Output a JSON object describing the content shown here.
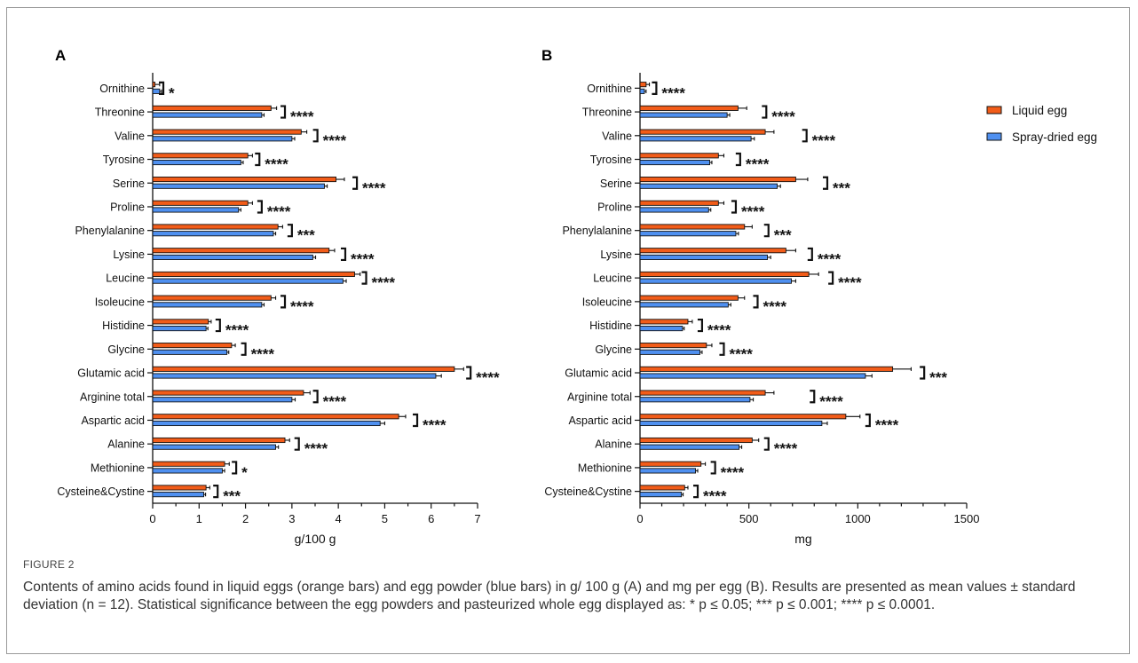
{
  "figure": {
    "label": "FIGURE 2",
    "caption": "Contents of amino acids found in liquid eggs (orange bars) and egg powder (blue bars) in g/ 100 g (A) and mg per egg (B). Results are presented as mean values ± standard deviation (n = 12). Statistical significance between the egg powders and pasteurized whole egg displayed as: * p ≤ 0.05; *** p ≤ 0.001; **** p ≤ 0.0001."
  },
  "colors": {
    "liquid": "#f25c19",
    "spray": "#4f90f0",
    "axis": "#111111"
  },
  "chart_data": [
    {
      "type": "bar",
      "orientation": "horizontal",
      "panel_label": "A",
      "xlabel": "g/100 g",
      "xlim": [
        0,
        7
      ],
      "xticks": [
        0,
        1,
        2,
        3,
        4,
        5,
        6,
        7
      ],
      "categories": [
        "Ornithine",
        "Threonine",
        "Valine",
        "Tyrosine",
        "Serine",
        "Proline",
        "Phenylalanine",
        "Lysine",
        "Leucine",
        "Isoleucine",
        "Histidine",
        "Glycine",
        "Glutamic acid",
        "Arginine total",
        "Aspartic acid",
        "Alanine",
        "Methionine",
        "Cysteine&Cystine"
      ],
      "series": [
        {
          "name": "Liquid egg",
          "values": [
            0.05,
            2.55,
            3.2,
            2.05,
            3.95,
            2.05,
            2.7,
            3.8,
            4.35,
            2.55,
            1.2,
            1.7,
            6.5,
            3.25,
            5.3,
            2.85,
            1.55,
            1.15
          ],
          "errors": [
            0.1,
            0.12,
            0.12,
            0.1,
            0.18,
            0.1,
            0.1,
            0.12,
            0.12,
            0.1,
            0.06,
            0.08,
            0.2,
            0.14,
            0.15,
            0.1,
            0.1,
            0.08
          ]
        },
        {
          "name": "Spray-dried egg",
          "values": [
            0.15,
            2.35,
            3.0,
            1.9,
            3.7,
            1.85,
            2.6,
            3.45,
            4.1,
            2.35,
            1.15,
            1.6,
            6.1,
            3.0,
            4.9,
            2.65,
            1.5,
            1.1
          ],
          "errors": [
            0.04,
            0.05,
            0.06,
            0.05,
            0.06,
            0.05,
            0.05,
            0.06,
            0.07,
            0.05,
            0.04,
            0.04,
            0.12,
            0.07,
            0.1,
            0.06,
            0.05,
            0.04
          ]
        }
      ],
      "significance": [
        "*",
        "****",
        "****",
        "****",
        "****",
        "****",
        "***",
        "****",
        "****",
        "****",
        "****",
        "****",
        "****",
        "****",
        "****",
        "****",
        "*",
        "***"
      ],
      "bracket_x": [
        0.23,
        2.85,
        3.55,
        2.3,
        4.4,
        2.35,
        3.0,
        4.15,
        4.6,
        2.85,
        1.45,
        2.0,
        6.85,
        3.55,
        5.7,
        3.15,
        1.8,
        1.4
      ]
    },
    {
      "type": "bar",
      "orientation": "horizontal",
      "panel_label": "B",
      "xlabel": "mg",
      "xlim": [
        0,
        1500
      ],
      "xticks": [
        0,
        500,
        1000,
        1500
      ],
      "categories": [
        "Ornithine",
        "Threonine",
        "Valine",
        "Tyrosine",
        "Serine",
        "Proline",
        "Phenylalanine",
        "Lysine",
        "Leucine",
        "Isoleucine",
        "Histidine",
        "Glycine",
        "Glutamic acid",
        "Arginine total",
        "Aspartic acid",
        "Alanine",
        "Methionine",
        "Cysteine&Cystine"
      ],
      "series": [
        {
          "name": "Liquid egg",
          "values": [
            28,
            450,
            575,
            360,
            715,
            360,
            480,
            670,
            775,
            450,
            220,
            305,
            1160,
            575,
            945,
            515,
            280,
            205
          ],
          "errors": [
            15,
            40,
            40,
            25,
            55,
            25,
            35,
            45,
            45,
            30,
            20,
            25,
            85,
            40,
            65,
            30,
            20,
            15
          ]
        },
        {
          "name": "Spray-dried egg",
          "values": [
            20,
            400,
            510,
            320,
            630,
            315,
            440,
            585,
            695,
            405,
            195,
            275,
            1035,
            505,
            835,
            455,
            255,
            190
          ],
          "errors": [
            8,
            12,
            15,
            10,
            15,
            10,
            12,
            15,
            20,
            12,
            8,
            10,
            30,
            15,
            25,
            12,
            10,
            8
          ]
        }
      ],
      "significance": [
        "****",
        "****",
        "****",
        "****",
        "***",
        "****",
        "***",
        "****",
        "****",
        "****",
        "****",
        "****",
        "***",
        "****",
        "****",
        "****",
        "****",
        "****"
      ],
      "bracket_x": [
        75,
        580,
        765,
        460,
        860,
        440,
        590,
        790,
        885,
        540,
        285,
        385,
        1305,
        800,
        1055,
        590,
        345,
        265
      ],
      "legend": {
        "placement": "top-right",
        "entries": [
          "Liquid egg",
          "Spray-dried egg"
        ]
      }
    }
  ]
}
